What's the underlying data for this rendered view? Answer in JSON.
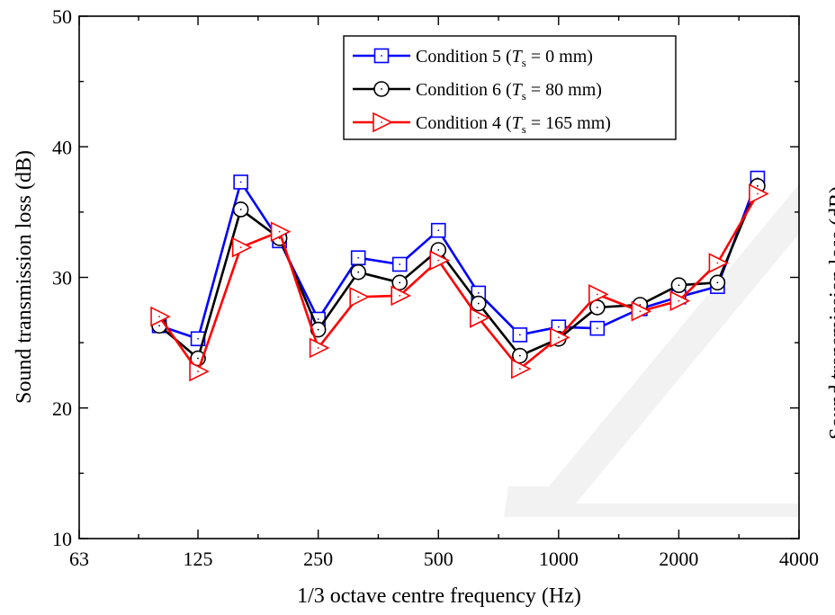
{
  "chart_data": {
    "type": "line",
    "xlabel": "1/3 octave centre frequency (Hz)",
    "ylabel": "Sound transmission loss (dB)",
    "right_ylabel_partial": "Sound transmission loss (dB)",
    "x_scale": "log",
    "xlim": [
      63,
      4000
    ],
    "ylim": [
      10,
      50
    ],
    "x_ticks": [
      63,
      125,
      250,
      500,
      1000,
      2000,
      4000
    ],
    "x_tick_labels": [
      "63",
      "125",
      "250",
      "500",
      "1000",
      "2000",
      "4000"
    ],
    "y_ticks": [
      10,
      20,
      30,
      40,
      50
    ],
    "y_tick_labels": [
      "10",
      "20",
      "30",
      "40",
      "50"
    ],
    "legend_position": "top-right",
    "grid": false,
    "x": [
      100,
      125,
      160,
      200,
      250,
      315,
      400,
      500,
      630,
      800,
      1000,
      1250,
      1600,
      2000,
      2500,
      3150
    ],
    "series": [
      {
        "legend_main": "Condition 5 (",
        "legend_sym": "T",
        "legend_sub": "s",
        "legend_rest": " = 0 mm)",
        "color": "#0000ff",
        "marker": "square",
        "values": [
          26.3,
          25.3,
          37.3,
          32.8,
          26.8,
          31.5,
          31.0,
          33.6,
          28.8,
          25.6,
          26.2,
          26.1,
          27.6,
          28.5,
          29.3,
          37.6
        ]
      },
      {
        "legend_main": "Condition 6 (",
        "legend_sym": "T",
        "legend_sub": "s",
        "legend_rest": " = 80 mm)",
        "color": "#000000",
        "marker": "circle",
        "values": [
          26.3,
          23.8,
          35.2,
          33.0,
          26.0,
          30.4,
          29.6,
          32.1,
          28.0,
          24.0,
          25.3,
          27.7,
          27.9,
          29.4,
          29.6,
          37.0
        ]
      },
      {
        "legend_main": "Condition 4 (",
        "legend_sym": "T",
        "legend_sub": "s",
        "legend_rest": " = 165 mm)",
        "color": "#ff0000",
        "marker": "triangle-right",
        "values": [
          27.0,
          22.8,
          32.3,
          33.5,
          24.6,
          28.5,
          28.6,
          31.3,
          26.9,
          23.0,
          25.4,
          28.7,
          27.4,
          28.2,
          31.1,
          36.4
        ]
      }
    ]
  }
}
